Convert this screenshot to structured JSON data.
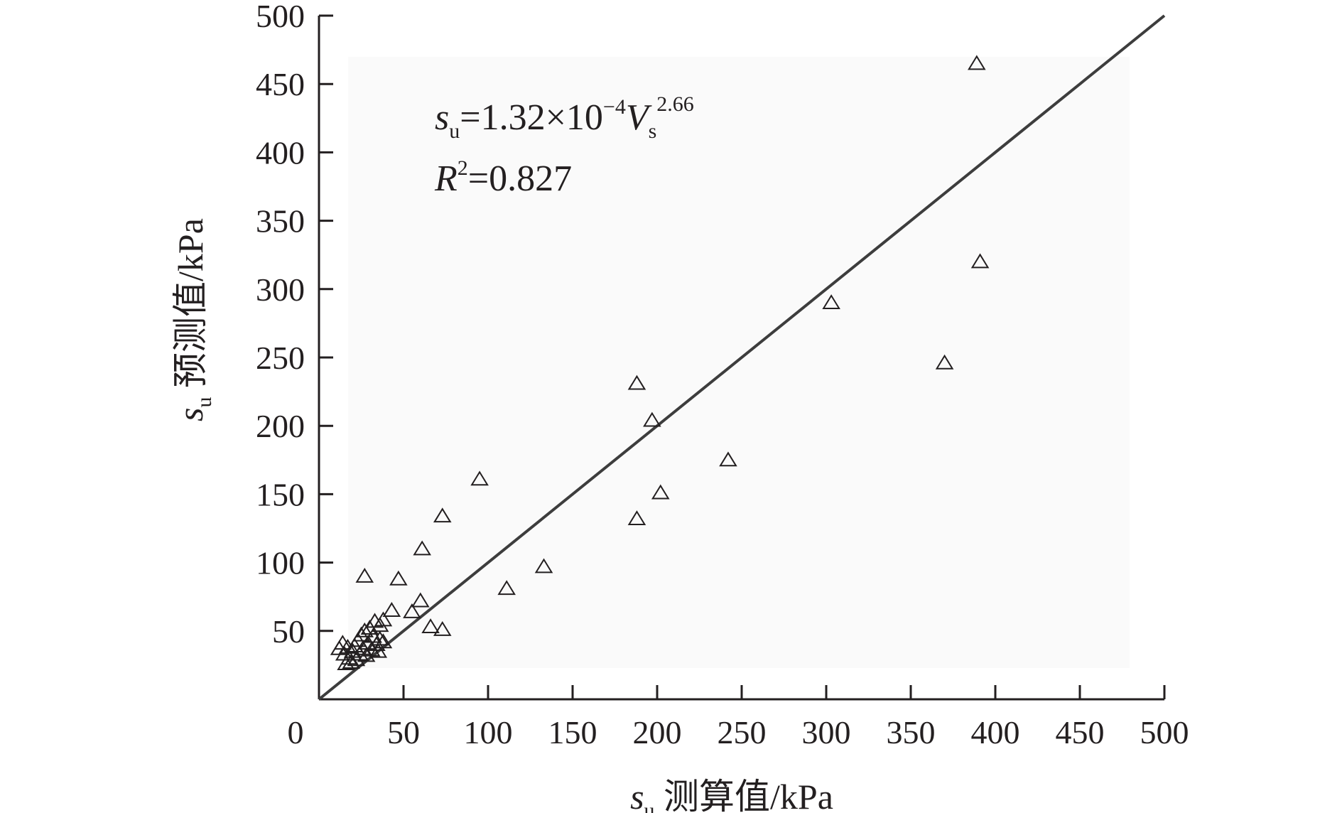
{
  "chart_data": {
    "type": "scatter",
    "x_axis": {
      "label_var": "s",
      "label_sub": "u",
      "label_text": "测算值/kPa",
      "range": [
        0,
        500
      ],
      "ticks": [
        "0",
        "50",
        "100",
        "150",
        "200",
        "250",
        "300",
        "350",
        "400",
        "450",
        "500"
      ]
    },
    "y_axis": {
      "label_var": "s",
      "label_sub": "u",
      "label_text": "预测值/kPa",
      "range": [
        0,
        500
      ],
      "ticks": [
        "50",
        "100",
        "150",
        "200",
        "250",
        "300",
        "350",
        "400",
        "450",
        "500"
      ]
    },
    "annotation": {
      "eq_var": "s",
      "eq_sub": "u",
      "eq_mid": "=1.32×10",
      "eq_exp": "−4",
      "eq_var2": "V",
      "eq_sub2": "s",
      "eq_exp2": "2.66",
      "r_var": "R",
      "r_exp": "2",
      "r_val": "=0.827"
    },
    "reference_line": {
      "x": [
        0,
        500
      ],
      "y": [
        0,
        500
      ]
    },
    "points": [
      [
        389,
        465
      ],
      [
        391,
        320
      ],
      [
        303,
        290
      ],
      [
        370,
        246
      ],
      [
        188,
        231
      ],
      [
        197,
        204
      ],
      [
        242,
        175
      ],
      [
        202,
        151
      ],
      [
        188,
        132
      ],
      [
        95,
        161
      ],
      [
        73,
        134
      ],
      [
        61,
        110
      ],
      [
        133,
        97
      ],
      [
        111,
        81
      ],
      [
        47,
        88
      ],
      [
        27,
        90
      ],
      [
        60,
        72
      ],
      [
        55,
        64
      ],
      [
        43,
        65
      ],
      [
        66,
        53
      ],
      [
        73,
        51
      ],
      [
        38,
        58
      ],
      [
        33,
        57
      ],
      [
        36,
        54
      ],
      [
        30,
        52
      ],
      [
        27,
        50
      ],
      [
        25,
        47
      ],
      [
        32,
        46
      ],
      [
        36,
        44
      ],
      [
        23,
        43
      ],
      [
        29,
        41
      ],
      [
        34,
        40
      ],
      [
        38,
        42
      ],
      [
        21,
        39
      ],
      [
        26,
        37
      ],
      [
        31,
        36
      ],
      [
        35,
        35
      ],
      [
        17,
        38
      ],
      [
        20,
        35
      ],
      [
        24,
        33
      ],
      [
        28,
        32
      ],
      [
        12,
        37
      ],
      [
        15,
        33
      ],
      [
        18,
        30
      ],
      [
        22,
        29
      ],
      [
        14,
        41
      ],
      [
        19,
        27
      ],
      [
        16,
        26
      ]
    ]
  }
}
